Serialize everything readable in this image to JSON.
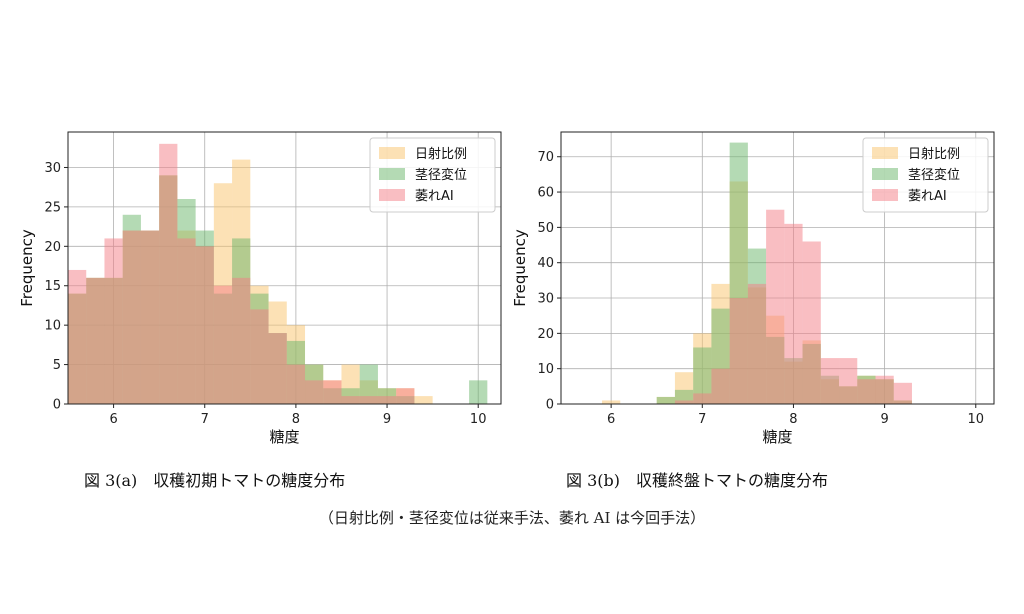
{
  "colors": {
    "nissha": "#f9c46b",
    "kei": "#6ab56a",
    "shiore": "#f47e86"
  },
  "captions": {
    "a": "図 3(a)　収穫初期トマトの糖度分布",
    "b": "図 3(b)　収穫終盤トマトの糖度分布",
    "note": "（日射比例・茎径変位は従来手法、萎れ AI は今回手法）"
  },
  "chart_data": [
    {
      "type": "bar",
      "histogram": true,
      "title": "",
      "xlabel": "糖度",
      "ylabel": "Frequency",
      "xlim": [
        5.5,
        10.25
      ],
      "ylim": [
        0,
        34.5
      ],
      "xticks": [
        6,
        7,
        8,
        9,
        10
      ],
      "yticks": [
        0,
        5,
        10,
        15,
        20,
        25,
        30
      ],
      "grid": true,
      "legend_placement": "top-right",
      "bin_edges": [
        5.5,
        5.7,
        5.9,
        6.1,
        6.3,
        6.5,
        6.7,
        6.9,
        7.1,
        7.3,
        7.5,
        7.7,
        7.9,
        8.1,
        8.3,
        8.5,
        8.7,
        8.9,
        9.1,
        9.3,
        9.5,
        9.7,
        9.9,
        10.1
      ],
      "series": [
        {
          "name": "日射比例",
          "color_key": "nissha",
          "values": [
            14,
            16,
            16,
            22,
            22,
            29,
            22,
            20,
            28,
            31,
            15,
            13,
            10,
            5,
            3,
            5,
            3,
            2,
            2,
            1,
            0,
            0,
            0
          ]
        },
        {
          "name": "茎径変位",
          "color_key": "kei",
          "values": [
            14,
            16,
            16,
            24,
            22,
            29,
            26,
            22,
            14,
            21,
            14,
            9,
            8,
            5,
            2,
            2,
            5,
            2,
            1,
            0,
            0,
            0,
            3
          ]
        },
        {
          "name": "萎れAI",
          "color_key": "shiore",
          "values": [
            17,
            16,
            21,
            22,
            22,
            33,
            21,
            20,
            15,
            16,
            12,
            9,
            5,
            3,
            3,
            1,
            1,
            1,
            2,
            0,
            0,
            0,
            0
          ]
        }
      ]
    },
    {
      "type": "bar",
      "histogram": true,
      "title": "",
      "xlabel": "糖度",
      "ylabel": "Frequency",
      "xlim": [
        5.45,
        10.2
      ],
      "ylim": [
        0,
        77
      ],
      "xticks": [
        6,
        7,
        8,
        9,
        10
      ],
      "yticks": [
        0,
        10,
        20,
        30,
        40,
        50,
        60,
        70
      ],
      "grid": true,
      "legend_placement": "top-right",
      "bin_edges": [
        5.9,
        6.1,
        6.3,
        6.5,
        6.7,
        6.9,
        7.1,
        7.3,
        7.5,
        7.7,
        7.9,
        8.1,
        8.3,
        8.5,
        8.7,
        8.9,
        9.1,
        9.3,
        9.5
      ],
      "series": [
        {
          "name": "日射比例",
          "color_key": "nissha",
          "values": [
            1,
            0,
            0,
            2,
            9,
            20,
            34,
            63,
            33,
            25,
            12,
            18,
            7,
            5,
            8,
            7,
            1,
            0
          ]
        },
        {
          "name": "茎径変位",
          "color_key": "kei",
          "values": [
            0,
            0,
            0,
            2,
            4,
            16,
            27,
            74,
            44,
            19,
            13,
            17,
            8,
            5,
            8,
            7,
            1,
            0
          ]
        },
        {
          "name": "萎れAI",
          "color_key": "shiore",
          "values": [
            0,
            0,
            0,
            0,
            1,
            3,
            10,
            30,
            34,
            55,
            51,
            46,
            13,
            13,
            7,
            8,
            6,
            0
          ]
        }
      ]
    }
  ]
}
